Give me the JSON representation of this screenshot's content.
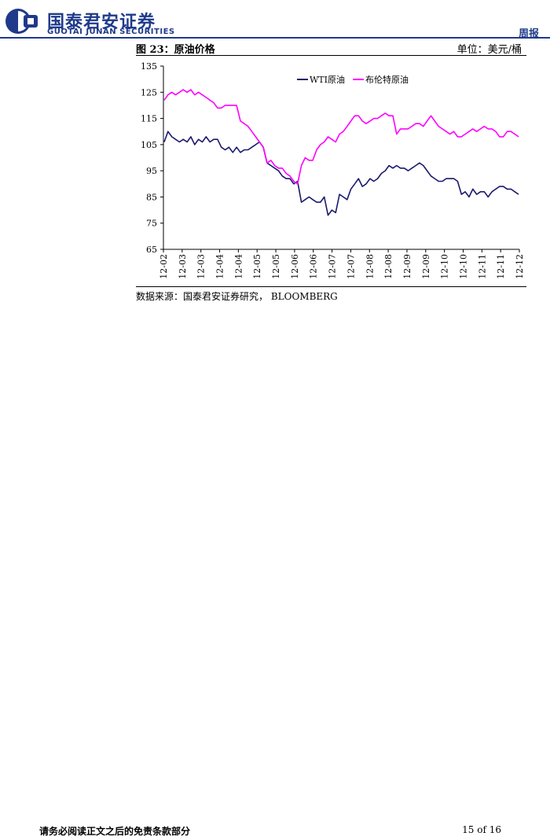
{
  "header": {
    "company_cn": "国泰君安证券",
    "company_en": "GUOTAI JUNAN SECURITIES",
    "report_type": "周报",
    "brand_color": "#1f3a8a"
  },
  "figure": {
    "title": "图 23：原油价格",
    "unit": "单位：美元/桶",
    "source": "数据来源：国泰君安证券研究，  BLOOMBERG"
  },
  "chart_data": {
    "type": "line",
    "ylim": [
      65,
      135
    ],
    "yticks": [
      65,
      75,
      85,
      95,
      105,
      115,
      125,
      135
    ],
    "xticks": [
      "12-02",
      "12-03",
      "12-03",
      "12-04",
      "12-04",
      "12-05",
      "12-05",
      "12-06",
      "12-06",
      "12-07",
      "12-07",
      "12-08",
      "12-08",
      "12-09",
      "12-09",
      "12-10",
      "12-10",
      "12-11",
      "12-11",
      "12-12"
    ],
    "legend_position": "top-center",
    "grid": false,
    "series": [
      {
        "name": "WTI原油",
        "color": "#1a1a6e",
        "values": [
          106,
          110,
          108,
          107,
          106,
          107,
          106,
          108,
          105,
          107,
          106,
          108,
          106,
          107,
          107,
          104,
          103,
          104,
          102,
          104,
          102,
          103,
          103,
          104,
          105,
          106,
          104,
          98,
          97,
          96,
          95,
          93,
          92,
          92,
          90,
          91,
          83,
          84,
          85,
          84,
          83,
          83,
          85,
          78,
          80,
          79,
          86,
          85,
          84,
          88,
          90,
          92,
          89,
          90,
          92,
          91,
          92,
          94,
          95,
          97,
          96,
          97,
          96,
          96,
          95,
          96,
          97,
          98,
          97,
          95,
          93,
          92,
          91,
          91,
          92,
          92,
          92,
          91,
          86,
          87,
          85,
          88,
          86,
          87,
          87,
          85,
          87,
          88,
          89,
          89,
          88,
          88,
          87,
          86
        ]
      },
      {
        "name": "布伦特原油",
        "color": "#ff00ff",
        "values": [
          122,
          124,
          125,
          124,
          125,
          126,
          125,
          126,
          124,
          125,
          124,
          123,
          122,
          121,
          119,
          119,
          120,
          120,
          120,
          120,
          114,
          113,
          112,
          110,
          108,
          106,
          104,
          98,
          99,
          97,
          96,
          96,
          94,
          93,
          91,
          90,
          97,
          100,
          99,
          99,
          103,
          105,
          106,
          108,
          107,
          106,
          109,
          110,
          112,
          114,
          116,
          116,
          114,
          113,
          114,
          115,
          115,
          116,
          117,
          116,
          116,
          109,
          111,
          111,
          111,
          112,
          113,
          113,
          112,
          114,
          116,
          114,
          112,
          111,
          110,
          109,
          110,
          108,
          108,
          109,
          110,
          111,
          110,
          111,
          112,
          111,
          111,
          110,
          108,
          108,
          110,
          110,
          109,
          108
        ]
      }
    ]
  },
  "footer": {
    "disclaimer": "请务必阅读正文之后的免责条款部分",
    "page": "15 of 16"
  }
}
